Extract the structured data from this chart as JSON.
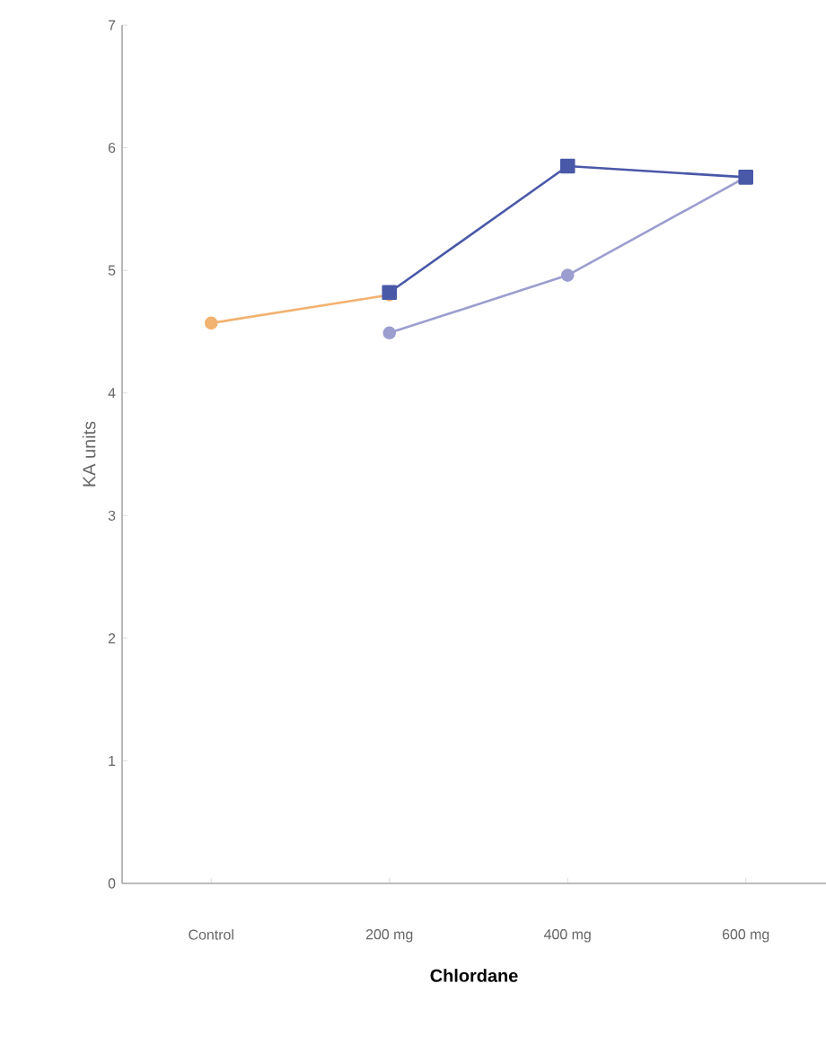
{
  "chart_data": {
    "type": "line",
    "xlabel": "Chlordane",
    "ylabel": "KA units",
    "categories": [
      "Control",
      "200 mg",
      "400 mg",
      "600 mg"
    ],
    "ylim": [
      0,
      7
    ],
    "yticks": [
      0,
      1,
      2,
      3,
      4,
      5,
      6,
      7
    ],
    "grid": false,
    "series": [
      {
        "color": "#f2b270",
        "marker": "circle",
        "values": [
          4.57,
          4.8,
          null,
          null
        ]
      },
      {
        "color": "#9c9ed0",
        "marker": "circle",
        "values": [
          null,
          4.49,
          4.96,
          5.76
        ]
      },
      {
        "color": "#4a58a8",
        "marker": "square",
        "values": [
          null,
          4.82,
          5.85,
          5.76
        ]
      }
    ]
  }
}
